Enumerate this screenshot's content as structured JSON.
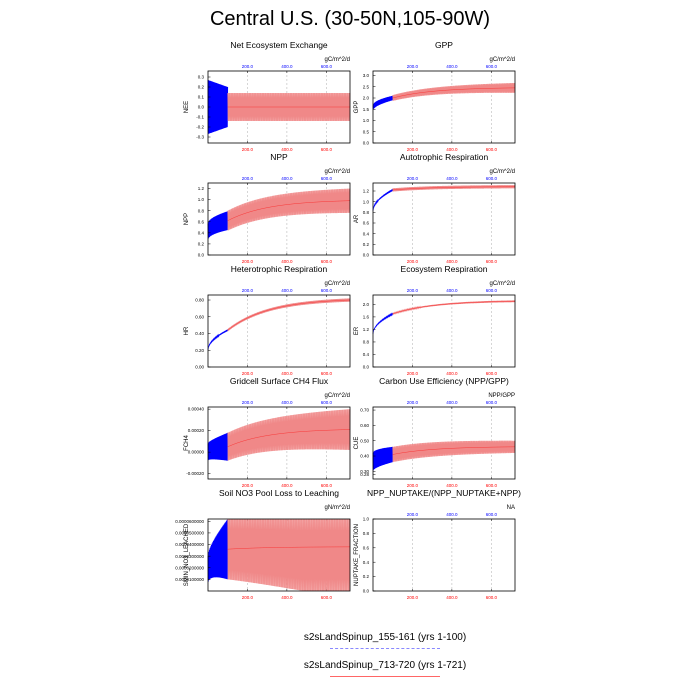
{
  "title": "Central U.S. (30-50N,105-90W)",
  "colors": {
    "run1": "#0000ff",
    "run2": "#ff0000",
    "run2_light": "#f08888",
    "top_ticks": "#0000ff",
    "bottom_ticks": "#ff0000"
  },
  "legend": {
    "items": [
      {
        "label": "s2sLandSpinup_155-161 (yrs 1-100)",
        "style": "dashed-blue"
      },
      {
        "label": "s2sLandSpinup_713-720 (yrs 1-721)",
        "style": "solid-red"
      }
    ]
  },
  "chart_data": [
    {
      "type": "line",
      "title": "Net Ecosystem Exchange",
      "ylabel": "NEE",
      "units": "gC/m^2/d",
      "yticks": [
        "0.3",
        "0.2",
        "0.1",
        "0.0",
        "-0.1",
        "-0.2",
        "-0.3"
      ],
      "ytick_values": [
        0.3,
        0.2,
        0.1,
        0.0,
        -0.1,
        -0.2,
        -0.3
      ],
      "ylim": [
        -0.36,
        0.36
      ],
      "xlim": [
        0,
        720
      ],
      "x_ticks_top": [
        "200.0",
        "400.0",
        "600.0"
      ],
      "x_ticks_bottom": [
        "200.0",
        "400.0",
        "600.0"
      ],
      "series": [
        {
          "values": {
            "center_start": 0.0,
            "center_end": 0.0,
            "amp_start": 0.27,
            "amp_end": 0.2,
            "x_end": 100
          }
        },
        {
          "values": {
            "center_start": 0.0,
            "center_end": 0.0,
            "amp_start": 0.14,
            "amp_end": 0.14,
            "x_end": 720
          }
        }
      ]
    },
    {
      "type": "line",
      "title": "GPP",
      "ylabel": "GPP",
      "units": "gC/m^2/d",
      "yticks": [
        "3.0",
        "2.5",
        "2.0",
        "1.5",
        "1.0",
        "0.5",
        "0.0"
      ],
      "ytick_values": [
        3.0,
        2.5,
        2.0,
        1.5,
        1.0,
        0.5,
        0.0
      ],
      "ylim": [
        0,
        3.2
      ],
      "xlim": [
        0,
        720
      ],
      "x_ticks_top": [
        "200.0",
        "400.0",
        "600.0"
      ],
      "x_ticks_bottom": [
        "200.0",
        "400.0",
        "600.0"
      ],
      "series": [
        {
          "values": {
            "center_start": 1.55,
            "center_end": 2.0,
            "amp_start": 0.12,
            "amp_end": 0.1,
            "x_end": 100
          }
        },
        {
          "values": {
            "center_start": 2.0,
            "center_end": 2.45,
            "amp_start": 0.13,
            "amp_end": 0.22,
            "x_end": 720
          }
        }
      ]
    },
    {
      "type": "line",
      "title": "NPP",
      "ylabel": "NPP",
      "units": "gC/m^2/d",
      "yticks": [
        "1.2",
        "1.0",
        "0.8",
        "0.6",
        "0.4",
        "0.2",
        "0.0"
      ],
      "ytick_values": [
        1.2,
        1.0,
        0.8,
        0.6,
        0.4,
        0.2,
        0.0
      ],
      "ylim": [
        0,
        1.3
      ],
      "xlim": [
        0,
        720
      ],
      "x_ticks_top": [
        "200.0",
        "400.0",
        "600.0"
      ],
      "x_ticks_bottom": [
        "200.0",
        "400.0",
        "600.0"
      ],
      "series": [
        {
          "values": {
            "center_start": 0.42,
            "center_end": 0.62,
            "amp_start": 0.15,
            "amp_end": 0.17,
            "x_end": 100
          }
        },
        {
          "values": {
            "center_start": 0.62,
            "center_end": 0.98,
            "amp_start": 0.18,
            "amp_end": 0.22,
            "x_end": 720
          }
        }
      ]
    },
    {
      "type": "line",
      "title": "Autotrophic Respiration",
      "ylabel": "AR",
      "units": "gC/m^2/d",
      "yticks": [
        "1.2",
        "1.0",
        "0.8",
        "0.6",
        "0.4",
        "0.2",
        "0.0"
      ],
      "ytick_values": [
        1.2,
        1.0,
        0.8,
        0.6,
        0.4,
        0.2,
        0.0
      ],
      "ylim": [
        0,
        1.35
      ],
      "xlim": [
        0,
        720
      ],
      "x_ticks_top": [
        "200.0",
        "400.0",
        "600.0"
      ],
      "x_ticks_bottom": [
        "200.0",
        "400.0",
        "600.0"
      ],
      "series": [
        {
          "values": {
            "center_start": 0.82,
            "center_end": 1.22,
            "amp_start": 0.01,
            "amp_end": 0.02,
            "x_end": 100
          }
        },
        {
          "values": {
            "center_start": 1.22,
            "center_end": 1.28,
            "amp_start": 0.03,
            "amp_end": 0.03,
            "x_end": 720
          }
        }
      ]
    },
    {
      "type": "line",
      "title": "Heterotrophic Respiration",
      "ylabel": "HR",
      "units": "gC/m^2/d",
      "yticks": [
        "0.80",
        "0.60",
        "0.40",
        "0.20",
        "0.00"
      ],
      "ytick_values": [
        0.8,
        0.6,
        0.4,
        0.2,
        0.0
      ],
      "ylim": [
        0,
        0.86
      ],
      "xlim": [
        0,
        720
      ],
      "x_ticks_top": [
        "200.0",
        "400.0",
        "600.0"
      ],
      "x_ticks_bottom": [
        "200.0",
        "400.0",
        "600.0"
      ],
      "series": [
        {
          "values": {
            "center_start": 0.2,
            "center_end": 0.44,
            "amp_start": 0.005,
            "amp_end": 0.01,
            "x_end": 100
          }
        },
        {
          "values": {
            "center_start": 0.44,
            "center_end": 0.8,
            "amp_start": 0.015,
            "amp_end": 0.02,
            "x_end": 720
          }
        }
      ]
    },
    {
      "type": "line",
      "title": "Ecosystem Respiration",
      "ylabel": "ER",
      "units": "gC/m^2/d",
      "yticks": [
        "2.0",
        "1.6",
        "1.2",
        "0.8",
        "0.4",
        "0.0"
      ],
      "ytick_values": [
        2.0,
        1.6,
        1.2,
        0.8,
        0.4,
        0.0
      ],
      "ylim": [
        0,
        2.3
      ],
      "xlim": [
        0,
        720
      ],
      "x_ticks_top": [
        "200.0",
        "400.0",
        "600.0"
      ],
      "x_ticks_bottom": [
        "200.0",
        "400.0",
        "600.0"
      ],
      "series": [
        {
          "values": {
            "center_start": 1.05,
            "center_end": 1.7,
            "amp_start": 0.01,
            "amp_end": 0.02,
            "x_end": 100
          }
        },
        {
          "values": {
            "center_start": 1.7,
            "center_end": 2.1,
            "amp_start": 0.02,
            "amp_end": 0.03,
            "x_end": 720
          }
        }
      ]
    },
    {
      "type": "line",
      "title": "Gridcell Surface CH4 Flux",
      "ylabel": "FCH4",
      "units": "gC/m^2/d",
      "yticks": [
        "0.00040",
        "0.00020",
        "0.00000",
        "-0.00020"
      ],
      "ytick_values": [
        0.0004,
        0.0002,
        0.0,
        -0.0002
      ],
      "ylim": [
        -0.00025,
        0.00042
      ],
      "xlim": [
        0,
        720
      ],
      "x_ticks_top": [
        "200.0",
        "400.0",
        "600.0"
      ],
      "x_ticks_bottom": [
        "200.0",
        "400.0",
        "600.0"
      ],
      "series": [
        {
          "values": {
            "center_start": 0.0,
            "center_end": 5e-05,
            "amp_start": 8e-05,
            "amp_end": 0.00013,
            "x_end": 100
          }
        },
        {
          "values": {
            "center_start": 5e-05,
            "center_end": 0.00021,
            "amp_start": 0.00013,
            "amp_end": 0.00019,
            "x_end": 720
          }
        }
      ]
    },
    {
      "type": "line",
      "title": "Carbon Use Efficiency (NPP/GPP)",
      "ylabel": "CUE",
      "units": "NPP/GPP",
      "yticks": [
        "0.70",
        "0.60",
        "0.50",
        "0.40",
        "0.30",
        "0.28"
      ],
      "ytick_values": [
        0.7,
        0.6,
        0.5,
        0.4,
        0.3,
        0.28
      ],
      "ylim": [
        0.25,
        0.72
      ],
      "xlim": [
        0,
        720
      ],
      "x_ticks_top": [
        "200.0",
        "400.0",
        "600.0"
      ],
      "x_ticks_bottom": [
        "200.0",
        "400.0",
        "600.0"
      ],
      "series": [
        {
          "values": {
            "center_start": 0.36,
            "center_end": 0.41,
            "amp_start": 0.06,
            "amp_end": 0.05,
            "x_end": 100
          }
        },
        {
          "values": {
            "center_start": 0.41,
            "center_end": 0.46,
            "amp_start": 0.05,
            "amp_end": 0.04,
            "x_end": 720
          }
        }
      ]
    },
    {
      "type": "line",
      "title": "Soil NO3 Pool Loss to Leaching",
      "ylabel": "SMIN_NO3_LEACHED",
      "units": "gN/m^2/d",
      "yticks": [
        "0.0000600000",
        "0.0000500000",
        "0.0000400000",
        "0.0000300000",
        "0.0000200000",
        "0.0000100000"
      ],
      "ytick_values": [
        6e-05,
        5e-05,
        4e-05,
        3e-05,
        2e-05,
        1e-05
      ],
      "ylim": [
        0,
        6.2e-05
      ],
      "xlim": [
        0,
        720
      ],
      "x_ticks_top": [],
      "x_ticks_bottom": [
        "200.0",
        "400.0",
        "600.0"
      ],
      "series": [
        {
          "values": {
            "center_start": 1.8e-05,
            "center_end": 3.6e-05,
            "amp_start": 1.2e-05,
            "amp_end": 2.6e-05,
            "x_end": 100
          }
        },
        {
          "values": {
            "center_start": 3.6e-05,
            "center_end": 3.8e-05,
            "amp_start": 2.6e-05,
            "amp_end": 4.5e-05,
            "x_end": 720
          }
        }
      ]
    },
    {
      "type": "line",
      "title": "NPP_NUPTAKE/(NPP_NUPTAKE+NPP)",
      "ylabel": "NUPTAKE_FRACTION",
      "units": "NA",
      "yticks": [
        "1.0",
        "0.8",
        "0.6",
        "0.4",
        "0.2",
        "0.0"
      ],
      "ytick_values": [
        1.0,
        0.8,
        0.6,
        0.4,
        0.2,
        0.0
      ],
      "ylim": [
        0,
        1.0
      ],
      "xlim": [
        0,
        720
      ],
      "x_ticks_top": [
        "200.0",
        "400.0",
        "600.0"
      ],
      "x_ticks_bottom": [
        "200.0",
        "400.0",
        "600.0"
      ],
      "series": []
    }
  ]
}
